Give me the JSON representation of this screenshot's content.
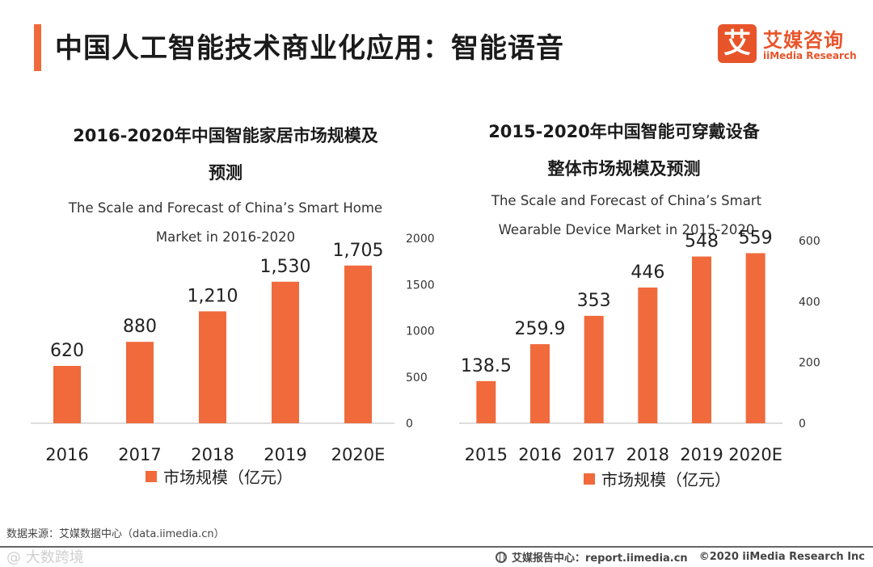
{
  "header": {
    "title": "中国人工智能技术商业化应用：智能语音",
    "logo_mark": "艾",
    "logo_cn": "艾媒咨询",
    "logo_en": "iiMedia Research"
  },
  "colors": {
    "accent": "#F06A3C",
    "bar": "#F06A3C",
    "axis": "#bbbbbb"
  },
  "chart_data": [
    {
      "type": "bar",
      "title_lines": [
        "2016-2020年中国智能家居市场规模及",
        "预测"
      ],
      "subtitle_lines": [
        "The Scale and Forecast of China’s Smart Home",
        "Market in 2016-2020"
      ],
      "categories": [
        "2016",
        "2017",
        "2018",
        "2019",
        "2020E"
      ],
      "values": [
        620,
        880,
        1210,
        1530,
        1705
      ],
      "value_labels": [
        "620",
        "880",
        "1,210",
        "1,530",
        "1,705"
      ],
      "y_ticks": [
        0,
        500,
        1000,
        1500,
        2000
      ],
      "ylim": [
        0,
        2000
      ],
      "y_axis_side": "right",
      "legend": "市场规模（亿元）"
    },
    {
      "type": "bar",
      "title_lines": [
        "2015-2020年中国智能可穿戴设备",
        "整体市场规模及预测"
      ],
      "subtitle_lines": [
        "The Scale and Forecast of China’s Smart",
        "Wearable Device Market in 2015-2020"
      ],
      "categories": [
        "2015",
        "2016",
        "2017",
        "2018",
        "2019",
        "2020E"
      ],
      "values": [
        138.5,
        259.9,
        353,
        446,
        548,
        559
      ],
      "value_labels": [
        "138.5",
        "259.9",
        "353",
        "446",
        "548",
        "559"
      ],
      "y_ticks": [
        0,
        200,
        400,
        600
      ],
      "ylim": [
        0,
        600
      ],
      "y_axis_side": "right",
      "legend": "市场规模（亿元）"
    }
  ],
  "footer": {
    "source": "数据来源：艾媒数据中心（data.iimedia.cn）",
    "watermark": "@ 大数跨境",
    "report_label": "艾媒报告中心：report.iimedia.cn",
    "copyright": "©2020  iiMedia Research  Inc"
  }
}
